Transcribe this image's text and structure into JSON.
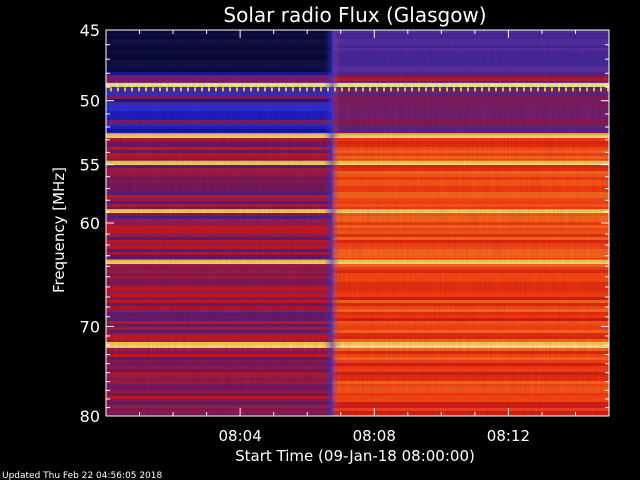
{
  "chart_data": {
    "type": "heatmap",
    "title": "Solar radio Flux (Glasgow)",
    "ylabel": "Frequency [MHz]",
    "xlabel": "Start Time (09-Jan-18 08:00:00)",
    "ylim": [
      45,
      80
    ],
    "y_scale": "log",
    "y_ticks": [
      "45",
      "50",
      "55",
      "60",
      "70",
      "80"
    ],
    "y_tick_values": [
      45,
      50,
      55,
      60,
      70,
      80
    ],
    "xlim": [
      "08:00:00",
      "08:15:00"
    ],
    "x_ticks": [
      "08:04",
      "08:08",
      "08:12"
    ],
    "x_tick_minutes": [
      4,
      8,
      12
    ],
    "transition_time": "08:06:45",
    "colormap": [
      "#000000",
      "#1a1aa0",
      "#6a2a9a",
      "#a0205a",
      "#d81a1a",
      "#ff4a10",
      "#ff9a30",
      "#ffe890"
    ],
    "intensity_before": "low",
    "intensity_after": "high",
    "bright_bands_mhz": [
      48.8,
      52.6,
      54.8,
      58.9,
      63.5,
      71.8
    ]
  },
  "footer": "Updated Thu Feb 22 04:56:05 2018"
}
